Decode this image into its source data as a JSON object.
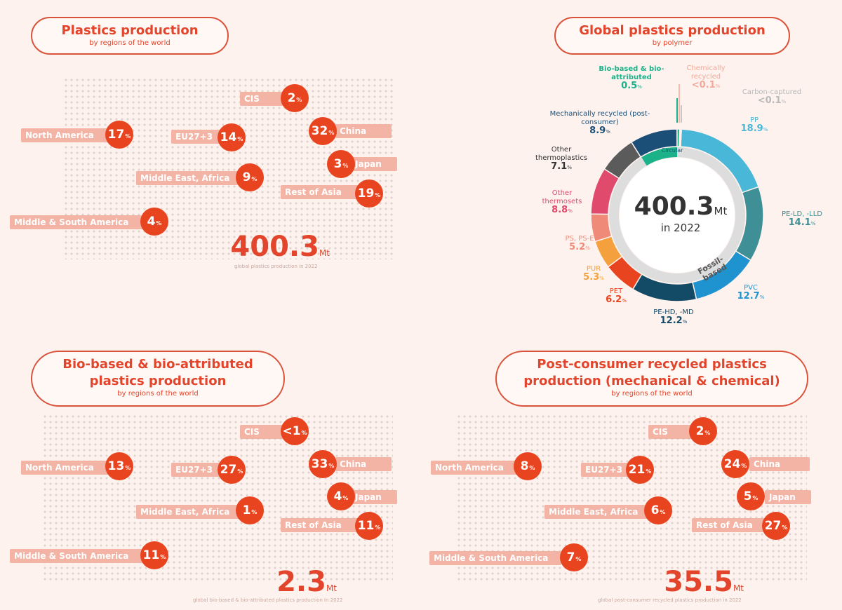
{
  "panels": [
    {
      "title": "Plastics production",
      "subtitle": "by regions of the world",
      "regions": [
        {
          "name": "North America",
          "value": "17",
          "unit": "%"
        },
        {
          "name": "EU27+3",
          "value": "14",
          "unit": "%"
        },
        {
          "name": "CIS",
          "value": "2",
          "unit": "%"
        },
        {
          "name": "China",
          "value": "32",
          "unit": "%"
        },
        {
          "name": "Japan",
          "value": "3",
          "unit": "%"
        },
        {
          "name": "Middle East, Africa",
          "value": "9",
          "unit": "%"
        },
        {
          "name": "Rest of Asia",
          "value": "19",
          "unit": "%"
        },
        {
          "name": "Middle & South America",
          "value": "4",
          "unit": "%"
        }
      ],
      "total_value": "400.3",
      "total_unit": "Mt",
      "total_caption": "global plastics production in 2022"
    },
    {
      "title": "Bio-based & bio-attributed plastics production",
      "subtitle": "by regions of the world",
      "regions": [
        {
          "name": "North America",
          "value": "13",
          "unit": "%"
        },
        {
          "name": "EU27+3",
          "value": "27",
          "unit": "%"
        },
        {
          "name": "CIS",
          "value": "<1",
          "unit": "%"
        },
        {
          "name": "China",
          "value": "33",
          "unit": "%"
        },
        {
          "name": "Japan",
          "value": "4",
          "unit": "%"
        },
        {
          "name": "Middle East, Africa",
          "value": "1",
          "unit": "%"
        },
        {
          "name": "Rest of Asia",
          "value": "11",
          "unit": "%"
        },
        {
          "name": "Middle & South America",
          "value": "11",
          "unit": "%"
        }
      ],
      "total_value": "2.3",
      "total_unit": "Mt",
      "total_caption": "global bio-based & bio-attributed plastics production in 2022"
    },
    {
      "title": "Post-consumer recycled plastics production (mechanical & chemical)",
      "subtitle": "by regions of the world",
      "regions": [
        {
          "name": "North America",
          "value": "8",
          "unit": "%"
        },
        {
          "name": "EU27+3",
          "value": "21",
          "unit": "%"
        },
        {
          "name": "CIS",
          "value": "2",
          "unit": "%"
        },
        {
          "name": "China",
          "value": "24",
          "unit": "%"
        },
        {
          "name": "Japan",
          "value": "5",
          "unit": "%"
        },
        {
          "name": "Middle East, Africa",
          "value": "6",
          "unit": "%"
        },
        {
          "name": "Rest of Asia",
          "value": "27",
          "unit": "%"
        },
        {
          "name": "Middle & South America",
          "value": "7",
          "unit": "%"
        }
      ],
      "total_value": "35.5",
      "total_unit": "Mt",
      "total_caption": "global post-consumer recycled plastics production in 2022"
    }
  ],
  "donut": {
    "title": "Global plastics production",
    "subtitle": "by polymer",
    "center_value": "400.3",
    "center_unit": "Mt",
    "center_caption": "in 2022",
    "inner_labels": {
      "circular": "Circular",
      "fossil": "Fossil-based"
    }
  },
  "chart_data": {
    "type": "pie",
    "title": "Global plastics production",
    "subtitle": "by polymer",
    "unit": "%",
    "series": [
      {
        "name": "PP",
        "value": 18.9,
        "color": "#49b7d7"
      },
      {
        "name": "PE-LD, -LLD",
        "value": 14.1,
        "color": "#3e8f96"
      },
      {
        "name": "PVC",
        "value": 12.7,
        "color": "#1e93cf"
      },
      {
        "name": "PE-HD, -MD",
        "value": 12.2,
        "color": "#134a66"
      },
      {
        "name": "PET",
        "value": 6.2,
        "color": "#e8441f"
      },
      {
        "name": "PUR",
        "value": 5.3,
        "color": "#f4a03c"
      },
      {
        "name": "PS, PS-E",
        "value": 5.2,
        "color": "#f08a78"
      },
      {
        "name": "Other thermosets",
        "value": 8.8,
        "color": "#e04a6d"
      },
      {
        "name": "Other thermoplastics",
        "value": 7.1,
        "color": "#5b5b5b"
      },
      {
        "name": "Mechanically recycled (post-consumer)",
        "value": 8.9,
        "color": "#1b4f78"
      },
      {
        "name": "Bio-based & bio-attributed",
        "value": 0.5,
        "color": "#1bb28a"
      },
      {
        "name": "Chemically recycled",
        "value": "<0.1",
        "color": "#f3a999"
      },
      {
        "name": "Carbon-captured",
        "value": "<0.1",
        "color": "#b9b9b9"
      }
    ]
  }
}
